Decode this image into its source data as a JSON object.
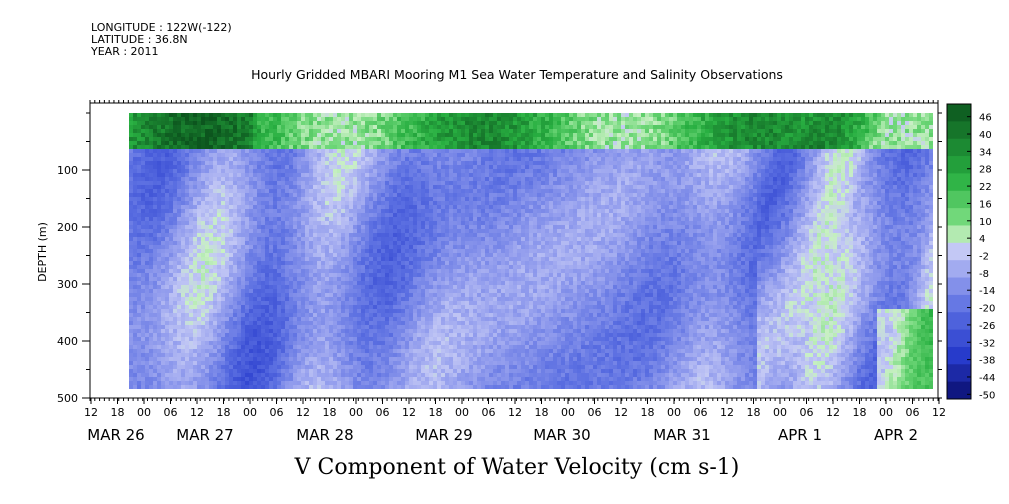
{
  "meta": {
    "longitude": "LONGITUDE : 122W(-122)",
    "latitude": "LATITUDE : 36.8N",
    "year": "YEAR : 2011"
  },
  "chart_data": {
    "type": "heatmap",
    "title": "Hourly Gridded MBARI Mooring M1 Sea Water Temperature and Salinity Observations",
    "xlabel": "V Component of Water Velocity (cm s-1)",
    "ylabel": "DEPTH (m)",
    "x_hour_ticks": [
      "12",
      "18",
      "00",
      "06",
      "12",
      "18",
      "00",
      "06",
      "12",
      "18",
      "00",
      "06",
      "12",
      "18",
      "00",
      "06",
      "12",
      "18",
      "00",
      "06",
      "12",
      "18",
      "00",
      "06",
      "12",
      "18",
      "00",
      "06",
      "12",
      "18",
      "00",
      "06",
      "12"
    ],
    "x_date_labels": [
      "MAR 26",
      "MAR 27",
      "MAR 28",
      "MAR 29",
      "MAR 30",
      "MAR 31",
      "APR  1",
      "APR  2"
    ],
    "y_ticks": [
      100,
      200,
      300,
      400,
      500
    ],
    "y_tick_labels": [
      "100",
      "200",
      "300",
      "400",
      "500"
    ],
    "ylim": [
      500,
      0
    ],
    "colorbar_labels": [
      "46",
      "40",
      "34",
      "28",
      "22",
      "16",
      "10",
      "4",
      "-2",
      "-8",
      "-14",
      "-20",
      "-26",
      "-32",
      "-38",
      "-44",
      "-50"
    ],
    "colorbar_range": [
      -50,
      50
    ],
    "colors": {
      "positive_dark": "#0f5e22",
      "positive_mid": "#34c24f",
      "neutral_light": "#c9f0c4",
      "negative_light": "#b8bdf0",
      "negative_mid": "#5a6fe0",
      "negative_dark": "#0a0f70"
    }
  }
}
